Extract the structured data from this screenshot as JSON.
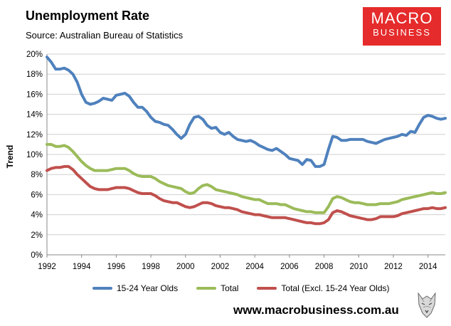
{
  "header": {
    "title": "Unemployment Rate",
    "subtitle": "Source: Australian Bureau of Statistics"
  },
  "logo": {
    "line1": "MACRO",
    "line2": "BUSINESS",
    "color": "#e52b2b"
  },
  "footer": {
    "url": "www.macrobusiness.com.au"
  },
  "chart_data": {
    "type": "line",
    "title": "Unemployment Rate",
    "xlabel": "",
    "ylabel": "Trend",
    "xlim": [
      1992,
      2015
    ],
    "ylim": [
      0,
      20
    ],
    "x_ticks": [
      "1992",
      "1994",
      "1996",
      "1998",
      "2000",
      "2002",
      "2004",
      "2006",
      "2008",
      "2010",
      "2012",
      "2014"
    ],
    "y_ticks": [
      "0%",
      "2%",
      "4%",
      "6%",
      "8%",
      "10%",
      "12%",
      "14%",
      "16%",
      "18%",
      "20%"
    ],
    "grid": "horizontal",
    "legend_position": "bottom",
    "x": [
      1992.0,
      1992.25,
      1992.5,
      1992.75,
      1993.0,
      1993.25,
      1993.5,
      1993.75,
      1994.0,
      1994.25,
      1994.5,
      1994.75,
      1995.0,
      1995.25,
      1995.5,
      1995.75,
      1996.0,
      1996.25,
      1996.5,
      1996.75,
      1997.0,
      1997.25,
      1997.5,
      1997.75,
      1998.0,
      1998.25,
      1998.5,
      1998.75,
      1999.0,
      1999.25,
      1999.5,
      1999.75,
      2000.0,
      2000.25,
      2000.5,
      2000.75,
      2001.0,
      2001.25,
      2001.5,
      2001.75,
      2002.0,
      2002.25,
      2002.5,
      2002.75,
      2003.0,
      2003.25,
      2003.5,
      2003.75,
      2004.0,
      2004.25,
      2004.5,
      2004.75,
      2005.0,
      2005.25,
      2005.5,
      2005.75,
      2006.0,
      2006.25,
      2006.5,
      2006.75,
      2007.0,
      2007.25,
      2007.5,
      2007.75,
      2008.0,
      2008.25,
      2008.5,
      2008.75,
      2009.0,
      2009.25,
      2009.5,
      2009.75,
      2010.0,
      2010.25,
      2010.5,
      2010.75,
      2011.0,
      2011.25,
      2011.5,
      2011.75,
      2012.0,
      2012.25,
      2012.5,
      2012.75,
      2013.0,
      2013.25,
      2013.5,
      2013.75,
      2014.0,
      2014.25,
      2014.5,
      2014.75,
      2015.0
    ],
    "series": [
      {
        "name": "15-24 Year Olds",
        "color": "#4f81bd",
        "values": [
          19.7,
          19.2,
          18.5,
          18.5,
          18.6,
          18.4,
          18.0,
          17.2,
          16.0,
          15.2,
          15.0,
          15.1,
          15.3,
          15.6,
          15.5,
          15.4,
          15.9,
          16.0,
          16.1,
          15.8,
          15.2,
          14.7,
          14.7,
          14.3,
          13.7,
          13.3,
          13.2,
          13.0,
          12.9,
          12.5,
          12.0,
          11.6,
          12.0,
          13.0,
          13.7,
          13.8,
          13.5,
          12.9,
          12.6,
          12.7,
          12.2,
          12.0,
          12.2,
          11.8,
          11.5,
          11.4,
          11.3,
          11.4,
          11.2,
          10.9,
          10.7,
          10.5,
          10.4,
          10.6,
          10.3,
          10.0,
          9.6,
          9.5,
          9.4,
          9.0,
          9.5,
          9.4,
          8.8,
          8.8,
          9.0,
          10.5,
          11.8,
          11.7,
          11.4,
          11.4,
          11.5,
          11.5,
          11.5,
          11.5,
          11.3,
          11.2,
          11.1,
          11.3,
          11.5,
          11.6,
          11.7,
          11.8,
          12.0,
          11.9,
          12.3,
          12.2,
          13.0,
          13.7,
          13.9,
          13.8,
          13.6,
          13.5,
          13.6
        ]
      },
      {
        "name": "Total",
        "color": "#9bbb59",
        "values": [
          11.0,
          11.0,
          10.8,
          10.8,
          10.9,
          10.7,
          10.3,
          9.8,
          9.3,
          8.9,
          8.6,
          8.4,
          8.4,
          8.4,
          8.4,
          8.5,
          8.6,
          8.6,
          8.6,
          8.4,
          8.1,
          7.9,
          7.8,
          7.8,
          7.8,
          7.6,
          7.3,
          7.1,
          6.9,
          6.8,
          6.7,
          6.6,
          6.3,
          6.1,
          6.2,
          6.6,
          6.9,
          7.0,
          6.8,
          6.5,
          6.4,
          6.3,
          6.2,
          6.1,
          6.0,
          5.8,
          5.7,
          5.6,
          5.5,
          5.5,
          5.3,
          5.1,
          5.1,
          5.1,
          5.0,
          5.0,
          4.8,
          4.6,
          4.5,
          4.4,
          4.3,
          4.3,
          4.2,
          4.2,
          4.2,
          4.8,
          5.6,
          5.8,
          5.7,
          5.5,
          5.3,
          5.2,
          5.2,
          5.1,
          5.0,
          5.0,
          5.0,
          5.1,
          5.1,
          5.1,
          5.2,
          5.3,
          5.5,
          5.6,
          5.7,
          5.8,
          5.9,
          6.0,
          6.1,
          6.2,
          6.1,
          6.1,
          6.2
        ]
      },
      {
        "name": "Total (Excl. 15-24 Year Olds)",
        "color": "#c0504d",
        "values": [
          8.4,
          8.6,
          8.7,
          8.7,
          8.8,
          8.8,
          8.5,
          8.0,
          7.6,
          7.2,
          6.8,
          6.6,
          6.5,
          6.5,
          6.5,
          6.6,
          6.7,
          6.7,
          6.7,
          6.6,
          6.4,
          6.2,
          6.1,
          6.1,
          6.1,
          5.9,
          5.6,
          5.4,
          5.3,
          5.2,
          5.2,
          5.0,
          4.8,
          4.7,
          4.8,
          5.0,
          5.2,
          5.2,
          5.1,
          4.9,
          4.8,
          4.7,
          4.7,
          4.6,
          4.5,
          4.3,
          4.2,
          4.1,
          4.0,
          4.0,
          3.9,
          3.8,
          3.7,
          3.7,
          3.7,
          3.7,
          3.6,
          3.5,
          3.4,
          3.3,
          3.2,
          3.2,
          3.1,
          3.1,
          3.2,
          3.5,
          4.2,
          4.4,
          4.3,
          4.1,
          3.9,
          3.8,
          3.7,
          3.6,
          3.5,
          3.5,
          3.6,
          3.8,
          3.8,
          3.8,
          3.8,
          3.9,
          4.1,
          4.2,
          4.3,
          4.4,
          4.5,
          4.6,
          4.6,
          4.7,
          4.6,
          4.6,
          4.7
        ]
      }
    ]
  }
}
